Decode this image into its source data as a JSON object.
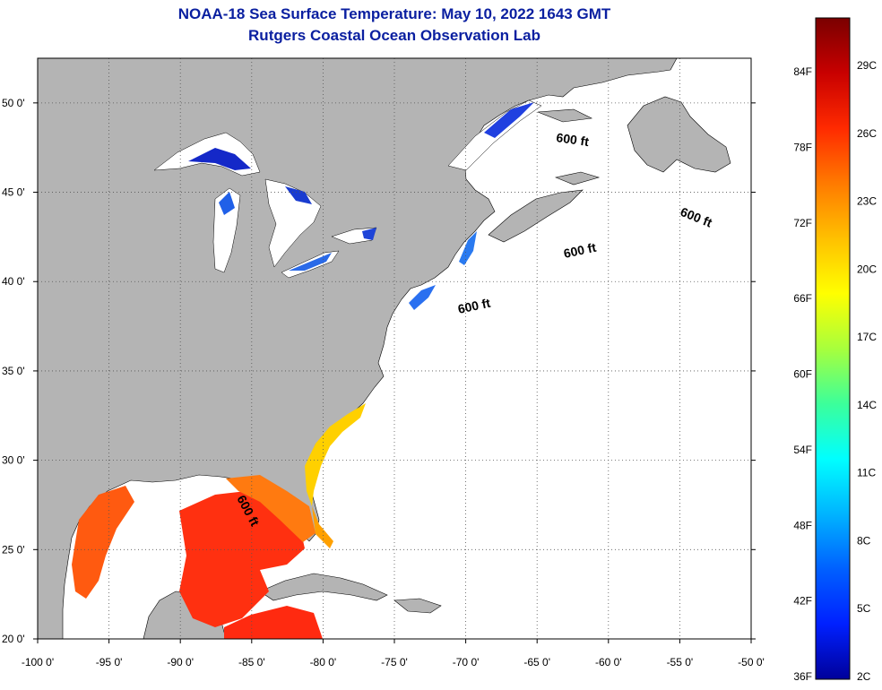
{
  "header": {
    "title_line1": "NOAA-18 Sea Surface Temperature:  May 10, 2022 1643 GMT",
    "title_line2": "Rutgers Coastal Ocean Observation Lab"
  },
  "map": {
    "lon_range": [
      -100,
      -50
    ],
    "lat_range": [
      20,
      52.5
    ],
    "x_ticks": [
      -100,
      -95,
      -90,
      -85,
      -80,
      -75,
      -70,
      -65,
      -60,
      -55,
      -50
    ],
    "x_tick_labels": [
      "-100 0'",
      "-95 0'",
      "-90 0'",
      "-85 0'",
      "-80 0'",
      "-75 0'",
      "-70 0'",
      "-65 0'",
      "-60 0'",
      "-55 0'",
      "-50 0'"
    ],
    "y_ticks": [
      20,
      25,
      30,
      35,
      40,
      45,
      50
    ],
    "y_tick_labels": [
      "20 0'",
      "25 0'",
      "30 0'",
      "35 0'",
      "40 0'",
      "45 0'",
      "50 0'"
    ],
    "grid": "dotted",
    "land_color": "#b4b4b4",
    "ocean_color": "#ffffff",
    "contour_labels": [
      "600 ft",
      "600 ft",
      "600 ft",
      "600 ft",
      "600 ft"
    ]
  },
  "colorbar": {
    "fahrenheit_labels": [
      "84F",
      "78F",
      "72F",
      "66F",
      "60F",
      "54F",
      "48F",
      "42F",
      "36F"
    ],
    "celsius_labels": [
      "29C",
      "26C",
      "23C",
      "20C",
      "17C",
      "14C",
      "11C",
      "8C",
      "5C",
      "2C"
    ],
    "colors_top_to_bottom": [
      "#7a0000",
      "#c80000",
      "#ff2a00",
      "#ff7a00",
      "#ffc000",
      "#ffff00",
      "#a8ff3c",
      "#3cff9a",
      "#00ffff",
      "#00b4ff",
      "#0060ff",
      "#0020ff",
      "#00009a"
    ]
  }
}
